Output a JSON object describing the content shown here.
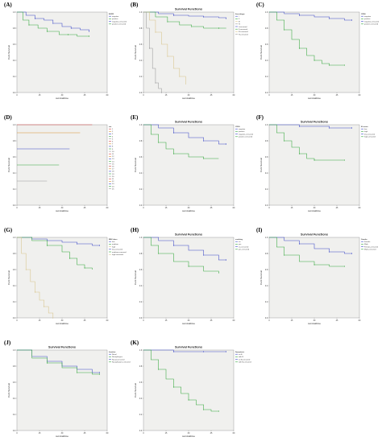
{
  "colors": {
    "plot_bg": "#f0f0ee",
    "blue": "#3c48c8",
    "green": "#34a83c",
    "beige": "#d8c48a",
    "grey": "#9a9a9a",
    "red": "#d04040",
    "orange": "#d89030"
  },
  "chart_data": [
    {
      "label": "(A)",
      "type": "line",
      "title": "",
      "ylabel": "Cum Survival",
      "xlabel": "survivaltime",
      "xlim": [
        0,
        60
      ],
      "ylim": [
        0,
        1
      ],
      "xticks": [
        "0",
        "15",
        "30",
        "45",
        "60"
      ],
      "yticks": [
        "0.0",
        "0.2",
        "0.4",
        "0.6",
        "0.8",
        "1.0"
      ],
      "legend_title": "EGFR",
      "legend": [
        "negative",
        "positive",
        "negative-censored",
        "positive-censored"
      ],
      "series": [
        {
          "color": "blue",
          "x": [
            0,
            6,
            12,
            18,
            24,
            30,
            36,
            42,
            48
          ],
          "y": [
            1.0,
            0.96,
            0.92,
            0.9,
            0.86,
            0.82,
            0.8,
            0.78,
            0.76
          ]
        },
        {
          "color": "green",
          "x": [
            0,
            4,
            8,
            14,
            20,
            28,
            34,
            40,
            48
          ],
          "y": [
            1.0,
            0.9,
            0.84,
            0.8,
            0.76,
            0.72,
            0.72,
            0.7,
            0.7
          ]
        }
      ]
    },
    {
      "label": "(B)",
      "type": "line",
      "title": "Survival Functions",
      "ylabel": "Cum Survival",
      "xlabel": "survivaltime",
      "xlim": [
        0,
        60
      ],
      "ylim": [
        0,
        1
      ],
      "xticks": [
        "0",
        "15",
        "30",
        "45",
        "60"
      ],
      "yticks": [
        "0.0",
        "0.2",
        "0.4",
        "0.6",
        "0.8",
        "1.0"
      ],
      "legend_title": "ihcsubtype",
      "legend": [
        "I",
        "II",
        "III",
        "IV",
        "I-censored",
        "II-censored",
        "III-censored",
        "IV-censored"
      ],
      "series": [
        {
          "color": "blue",
          "x": [
            0,
            10,
            20,
            30,
            40,
            50,
            55
          ],
          "y": [
            1.0,
            0.98,
            0.96,
            0.95,
            0.94,
            0.93,
            0.92
          ]
        },
        {
          "color": "green",
          "x": [
            0,
            8,
            16,
            24,
            32,
            40,
            50,
            55
          ],
          "y": [
            1.0,
            0.94,
            0.88,
            0.84,
            0.82,
            0.8,
            0.8,
            0.8
          ]
        },
        {
          "color": "beige",
          "x": [
            0,
            4,
            8,
            12,
            16,
            20,
            24,
            28
          ],
          "y": [
            1.0,
            0.9,
            0.75,
            0.6,
            0.45,
            0.3,
            0.2,
            0.1
          ]
        },
        {
          "color": "grey",
          "x": [
            0,
            2,
            4,
            6,
            8,
            10,
            12
          ],
          "y": [
            1.0,
            0.8,
            0.55,
            0.3,
            0.12,
            0.05,
            0.0
          ]
        }
      ]
    },
    {
      "label": "(C)",
      "type": "line",
      "title": "",
      "ylabel": "Cum Survival",
      "xlabel": "survivaltime",
      "xlim": [
        0,
        60
      ],
      "ylim": [
        0,
        1
      ],
      "xticks": [
        "0",
        "15",
        "30",
        "45",
        "60"
      ],
      "yticks": [
        "0.0",
        "0.2",
        "0.4",
        "0.6",
        "0.8",
        "1.0"
      ],
      "legend_title": "CD56",
      "legend": [
        "negative",
        "positive",
        "negative-censored",
        "positive-censored"
      ],
      "series": [
        {
          "color": "blue",
          "x": [
            0,
            10,
            20,
            30,
            40,
            50,
            55
          ],
          "y": [
            1.0,
            0.98,
            0.96,
            0.94,
            0.92,
            0.9,
            0.9
          ]
        },
        {
          "color": "green",
          "x": [
            0,
            5,
            10,
            15,
            20,
            25,
            30,
            35,
            40,
            45,
            50
          ],
          "y": [
            1.0,
            0.9,
            0.78,
            0.66,
            0.55,
            0.46,
            0.4,
            0.36,
            0.34,
            0.34,
            0.34
          ]
        }
      ]
    },
    {
      "label": "(D)",
      "type": "line",
      "title": "",
      "ylabel": "Cum Survival",
      "xlabel": "survivaltime",
      "xlim": [
        0,
        60
      ],
      "ylim": [
        0,
        1
      ],
      "xticks": [
        "0",
        "15",
        "30",
        "45",
        "60"
      ],
      "yticks": [
        "0.0",
        "0.2",
        "0.4",
        "0.6",
        "0.8",
        "1.0"
      ],
      "legend_title": "var",
      "legend": [
        "1",
        "2",
        "3",
        "4",
        "5",
        "6",
        "7",
        "8",
        "9",
        "10",
        "11",
        "12",
        "13",
        "14",
        "15",
        "16",
        "17",
        "18",
        "19",
        "20",
        "21",
        "22",
        "23",
        "24",
        "25"
      ],
      "series": [
        {
          "color": "red",
          "x": [
            0,
            50
          ],
          "y": [
            1.0,
            1.0
          ]
        },
        {
          "color": "orange",
          "x": [
            0,
            42
          ],
          "y": [
            0.9,
            0.9
          ]
        },
        {
          "color": "blue",
          "x": [
            0,
            35
          ],
          "y": [
            0.7,
            0.7
          ]
        },
        {
          "color": "green",
          "x": [
            0,
            28
          ],
          "y": [
            0.5,
            0.5
          ]
        },
        {
          "color": "grey",
          "x": [
            0,
            20
          ],
          "y": [
            0.3,
            0.3
          ]
        }
      ]
    },
    {
      "label": "(E)",
      "type": "line",
      "title": "Survival Functions",
      "ylabel": "Cum Survival",
      "xlabel": "survivaltime",
      "xlim": [
        0,
        60
      ],
      "ylim": [
        0,
        1
      ],
      "xticks": [
        "0",
        "15",
        "30",
        "45",
        "60"
      ],
      "yticks": [
        "0.0",
        "0.2",
        "0.4",
        "0.6",
        "0.8",
        "1.0"
      ],
      "legend_title": "CD30",
      "legend": [
        "negative",
        "positive",
        "negative-censored",
        "positive-censored"
      ],
      "series": [
        {
          "color": "blue",
          "x": [
            0,
            10,
            20,
            30,
            40,
            50,
            55
          ],
          "y": [
            1.0,
            0.96,
            0.9,
            0.84,
            0.8,
            0.76,
            0.76
          ]
        },
        {
          "color": "green",
          "x": [
            0,
            5,
            10,
            15,
            20,
            30,
            40,
            50
          ],
          "y": [
            1.0,
            0.88,
            0.78,
            0.7,
            0.64,
            0.6,
            0.58,
            0.58
          ]
        }
      ]
    },
    {
      "label": "(F)",
      "type": "line",
      "title": "Survival Functions",
      "ylabel": "Cum Survival",
      "xlabel": "survivaltime",
      "xlim": [
        0,
        60
      ],
      "ylim": [
        0,
        1
      ],
      "xticks": [
        "0",
        "15",
        "30",
        "45",
        "60"
      ],
      "yticks": [
        "0.0",
        "0.2",
        "0.4",
        "0.6",
        "0.8",
        "1.0"
      ],
      "legend_title": "Ki-score",
      "legend": [
        "low",
        "high",
        "low-censored",
        "high-censored"
      ],
      "series": [
        {
          "color": "blue",
          "x": [
            0,
            10,
            20,
            30,
            40,
            50,
            55
          ],
          "y": [
            1.0,
            1.0,
            0.98,
            0.98,
            0.96,
            0.96,
            0.96
          ]
        },
        {
          "color": "green",
          "x": [
            0,
            5,
            10,
            15,
            20,
            25,
            30,
            40,
            50
          ],
          "y": [
            1.0,
            0.9,
            0.8,
            0.72,
            0.64,
            0.58,
            0.56,
            0.56,
            0.56
          ]
        }
      ]
    },
    {
      "label": "(G)",
      "type": "line",
      "title": "",
      "ylabel": "Cum Survival",
      "xlabel": "survivaltime",
      "xlim": [
        0,
        60
      ],
      "ylim": [
        0,
        1
      ],
      "xticks": [
        "0",
        "15",
        "30",
        "45",
        "60"
      ],
      "yticks": [
        "0.0",
        "0.2",
        "0.4",
        "0.6",
        "0.8",
        "1.0"
      ],
      "legend_title": "EBV-class",
      "legend": [
        "low",
        "medium",
        "high",
        "low-censored",
        "medium-censored",
        "high-censored"
      ],
      "series": [
        {
          "color": "blue",
          "x": [
            0,
            10,
            20,
            30,
            40,
            50,
            55
          ],
          "y": [
            1.0,
            0.98,
            0.96,
            0.94,
            0.92,
            0.9,
            0.9
          ]
        },
        {
          "color": "green",
          "x": [
            0,
            10,
            20,
            30,
            35,
            40,
            45,
            50
          ],
          "y": [
            1.0,
            0.96,
            0.9,
            0.82,
            0.74,
            0.66,
            0.62,
            0.6
          ]
        },
        {
          "color": "beige",
          "x": [
            0,
            3,
            6,
            9,
            12,
            15,
            18,
            21,
            24
          ],
          "y": [
            1.0,
            0.8,
            0.6,
            0.45,
            0.32,
            0.22,
            0.14,
            0.06,
            0.0
          ]
        }
      ]
    },
    {
      "label": "(H)",
      "type": "line",
      "title": "Survival Functions",
      "ylabel": "Cum Survival",
      "xlabel": "survivaltime",
      "xlim": [
        0,
        60
      ],
      "ylim": [
        0,
        1
      ],
      "xticks": [
        "0",
        "15",
        "30",
        "45",
        "60"
      ],
      "yticks": [
        "0.0",
        "0.2",
        "0.4",
        "0.6",
        "0.8",
        "1.0"
      ],
      "legend_title": "smoking",
      "legend": [
        "no",
        "yes",
        "no-censored",
        "yes-censored"
      ],
      "series": [
        {
          "color": "blue",
          "x": [
            0,
            10,
            20,
            30,
            40,
            50,
            55
          ],
          "y": [
            1.0,
            0.96,
            0.9,
            0.84,
            0.78,
            0.72,
            0.72
          ]
        },
        {
          "color": "green",
          "x": [
            0,
            5,
            10,
            20,
            30,
            40,
            50
          ],
          "y": [
            1.0,
            0.9,
            0.8,
            0.7,
            0.64,
            0.58,
            0.56
          ]
        }
      ]
    },
    {
      "label": "(I)",
      "type": "line",
      "title": "Survival Functions",
      "ylabel": "Cum Survival",
      "xlabel": "survivaltime",
      "xlim": [
        0,
        60
      ],
      "ylim": [
        0,
        1
      ],
      "xticks": [
        "0",
        "15",
        "30",
        "45",
        "60"
      ],
      "yticks": [
        "0.0",
        "0.2",
        "0.4",
        "0.6",
        "0.8",
        "1.0"
      ],
      "legend_title": "Gender",
      "legend": [
        "Female",
        "Male",
        "Female-censored",
        "Male-censored"
      ],
      "series": [
        {
          "color": "blue",
          "x": [
            0,
            10,
            20,
            30,
            40,
            50,
            55
          ],
          "y": [
            1.0,
            0.96,
            0.92,
            0.86,
            0.82,
            0.8,
            0.8
          ]
        },
        {
          "color": "green",
          "x": [
            0,
            5,
            10,
            20,
            30,
            40,
            50
          ],
          "y": [
            1.0,
            0.88,
            0.78,
            0.7,
            0.66,
            0.64,
            0.64
          ]
        }
      ]
    },
    {
      "label": "(J)",
      "type": "line",
      "title": "Survival Functions",
      "ylabel": "Cum Survival",
      "xlabel": "survivaltime",
      "xlim": [
        0,
        60
      ],
      "ylim": [
        0,
        1
      ],
      "xticks": [
        "0",
        "15",
        "30",
        "45",
        "60"
      ],
      "yticks": [
        "0.0",
        "0.2",
        "0.4",
        "0.6",
        "0.8",
        "1.0"
      ],
      "legend_title": "location",
      "legend": [
        "Nasal",
        "Nasopharynx",
        "Nasal-censored",
        "Nasopharynx-censored"
      ],
      "series": [
        {
          "color": "blue",
          "x": [
            0,
            10,
            20,
            30,
            40,
            50,
            55
          ],
          "y": [
            1.0,
            0.92,
            0.86,
            0.8,
            0.76,
            0.72,
            0.72
          ]
        },
        {
          "color": "green",
          "x": [
            0,
            10,
            20,
            30,
            40,
            50,
            55
          ],
          "y": [
            1.0,
            0.9,
            0.84,
            0.78,
            0.72,
            0.7,
            0.7
          ]
        }
      ]
    },
    {
      "label": "(K)",
      "type": "line",
      "title": "Survival Functions",
      "ylabel": "Cum Survival",
      "xlabel": "survivaltime",
      "xlim": [
        0,
        60
      ],
      "ylim": [
        0,
        1
      ],
      "xticks": [
        "0",
        "15",
        "30",
        "45",
        "60"
      ],
      "yticks": [
        "0.0",
        "0.2",
        "0.4",
        "0.6",
        "0.8",
        "1.0"
      ],
      "legend_title": "Symptoms",
      "legend": [
        "no B",
        "with B",
        "no B-censored",
        "with B-censored"
      ],
      "series": [
        {
          "color": "blue",
          "x": [
            0,
            10,
            20,
            30,
            40,
            50,
            55
          ],
          "y": [
            1.0,
            1.0,
            0.98,
            0.98,
            0.98,
            0.98,
            0.98
          ]
        },
        {
          "color": "green",
          "x": [
            0,
            5,
            10,
            15,
            20,
            25,
            30,
            35,
            40,
            45,
            50
          ],
          "y": [
            1.0,
            0.88,
            0.76,
            0.64,
            0.54,
            0.46,
            0.38,
            0.32,
            0.26,
            0.24,
            0.24
          ]
        }
      ]
    }
  ]
}
